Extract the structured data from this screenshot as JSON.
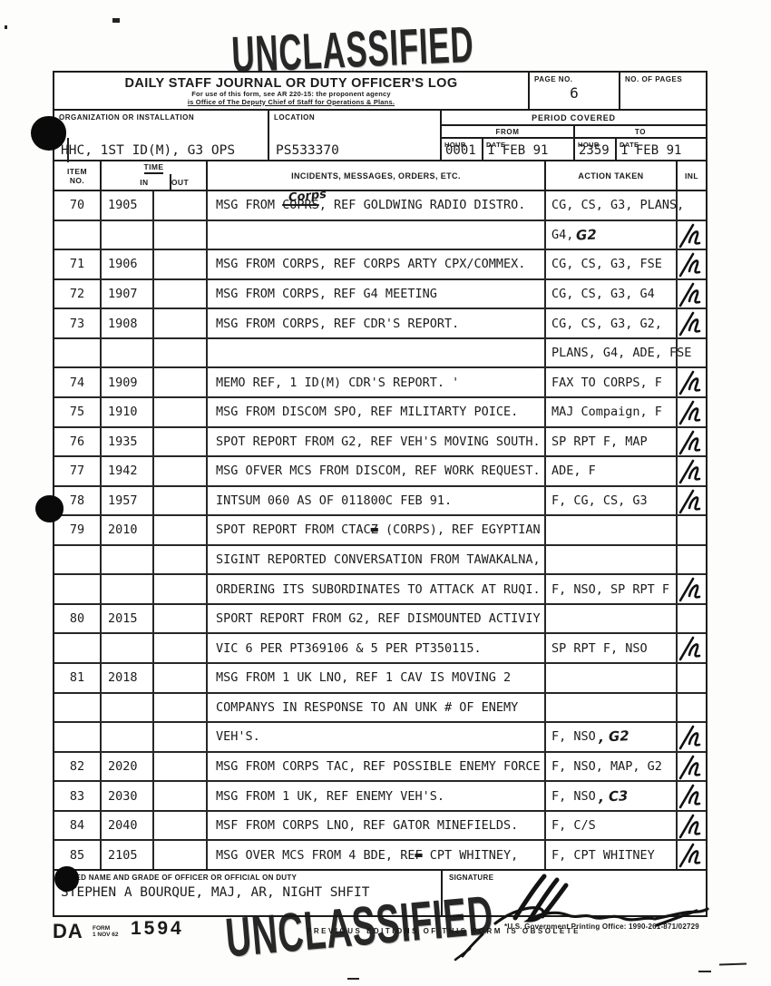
{
  "stamps": {
    "top": "UNCLASSIFIED",
    "bottom": "UNCLASSIFIED"
  },
  "header": {
    "title": "DAILY STAFF JOURNAL OR DUTY OFFICER'S LOG",
    "fineprint_line1": "For use of this form, see AR 220-15: the proponent agency",
    "fineprint_line2": "is Office of The Deputy Chief of Staff for Operations & Plans.",
    "page_no_label": "PAGE NO.",
    "page_no": "6",
    "no_of_pages_label": "NO. OF PAGES",
    "no_of_pages": "",
    "org_label": "ORGANIZATION OR INSTALLATION",
    "org_value": "HHC, 1ST ID(M), G3 OPS",
    "location_label": "LOCATION",
    "location_value": "PS533370",
    "period_label": "PERIOD COVERED",
    "from_label": "FROM",
    "to_label": "TO",
    "hour_label": "HOUR",
    "date_label": "DATE",
    "from_hour": "0001",
    "from_date": "1 FEB 91",
    "to_hour": "2359",
    "to_date": "1 FEB 91"
  },
  "table": {
    "headers": {
      "item_line1": "ITEM",
      "item_line2": "NO.",
      "time": "TIME",
      "in": "IN",
      "out": "OUT",
      "incidents": "INCIDENTS, MESSAGES, ORDERS, ETC.",
      "action": "ACTION TAKEN",
      "inl": "INL"
    },
    "rows": [
      {
        "item": "70",
        "in": "1905",
        "out": "",
        "inc_pre": "MSG FROM ",
        "inc_struck": "COPRS",
        "inc_post": ", REF GOLDWING RADIO DISTRO.",
        "hand_above": "Corps",
        "act": "CG, CS, G3, PLANS,",
        "inl": false
      },
      {
        "item": "",
        "in": "",
        "out": "",
        "inc": "",
        "act": "G4,",
        "act_hand": "G2",
        "inl": true
      },
      {
        "item": "71",
        "in": "1906",
        "out": "",
        "inc": "MSG FROM CORPS, REF CORPS ARTY CPX/COMMEX.",
        "act": "CG, CS, G3, FSE",
        "inl": true
      },
      {
        "item": "72",
        "in": "1907",
        "out": "",
        "inc": "MSG FROM CORPS, REF G4 MEETING",
        "act": "CG, CS, G3, G4",
        "inl": true
      },
      {
        "item": "73",
        "in": "1908",
        "out": "",
        "inc": "MSG FROM CORPS, REF CDR'S REPORT.",
        "act": "CG, CS, G3, G2,",
        "inl": true
      },
      {
        "item": "",
        "in": "",
        "out": "",
        "inc": "",
        "act": "PLANS, G4, ADE, FSE",
        "inl": false
      },
      {
        "item": "74",
        "in": "1909",
        "out": "",
        "inc": "MEMO REF, 1 ID(M) CDR'S REPORT. '",
        "act": "FAX TO CORPS, F",
        "inl": true
      },
      {
        "item": "75",
        "in": "1910",
        "out": "",
        "inc": "MSG FROM DISCOM SPO, REF MILITARTY POICE.",
        "act": "MAJ Compaign, F",
        "inl": true
      },
      {
        "item": "76",
        "in": "1935",
        "out": "",
        "inc": "SPOT REPORT FROM G2, REF VEH'S MOVING SOUTH.",
        "act": "SP RPT F, MAP",
        "inl": true
      },
      {
        "item": "77",
        "in": "1942",
        "out": "",
        "inc": "MSG OFVER MCS FROM DISCOM, REF WORK REQUEST.",
        "act": "ADE, F",
        "inl": true
      },
      {
        "item": "78",
        "in": "1957",
        "out": "",
        "inc": "INTSUM 060 AS OF 011800C FEB 91.",
        "act": "F, CG, CS, G3",
        "inl": true
      },
      {
        "item": "79",
        "in": "2010",
        "out": "",
        "inc_pre": "SPOT REPORT FROM CTAC",
        "inc_struck": "Z",
        "inc_heavy": true,
        "inc_post": " (CORPS), REF EGYPTIAN",
        "act": "",
        "inl": false
      },
      {
        "item": "",
        "in": "",
        "out": "",
        "inc": "SIGINT REPORTED CONVERSATION FROM TAWAKALNA,",
        "act": "",
        "inl": false
      },
      {
        "item": "",
        "in": "",
        "out": "",
        "inc": "ORDERING ITS SUBORDINATES TO ATTACK AT RUQI.",
        "act": "F, NSO, SP RPT F",
        "inl": true
      },
      {
        "item": "80",
        "in": "2015",
        "out": "",
        "inc": "SPORT REPORT FROM G2, REF DISMOUNTED ACTIVIY",
        "act": "",
        "inl": false
      },
      {
        "item": "",
        "in": "",
        "out": "",
        "inc": "VIC 6 PER PT369106 & 5 PER PT350115.",
        "act": "SP RPT F, NSO",
        "inl": true
      },
      {
        "item": "81",
        "in": "2018",
        "out": "",
        "inc": "MSG FROM 1 UK LNO, REF 1 CAV IS MOVING 2",
        "act": "",
        "inl": false
      },
      {
        "item": "",
        "in": "",
        "out": "",
        "inc": "COMPANYS IN RESPONSE TO AN UNK # OF ENEMY",
        "act": "",
        "inl": false
      },
      {
        "item": "",
        "in": "",
        "out": "",
        "inc": "VEH'S.",
        "act": "F, NSO",
        "act_hand": ", G2",
        "inl": true
      },
      {
        "item": "82",
        "in": "2020",
        "out": "",
        "inc": "MSG FROM CORPS TAC, REF POSSIBLE ENEMY FORCE",
        "act": "F, NSO, MAP, G2",
        "inl": true
      },
      {
        "item": "83",
        "in": "2030",
        "out": "",
        "inc": "MSG FROM 1 UK, REF ENEMY VEH'S.",
        "act": "F, NSO",
        "act_hand": ", C3",
        "inl": true
      },
      {
        "item": "84",
        "in": "2040",
        "out": "",
        "inc": "MSF FROM CORPS LNO, REF GATOR MINEFIELDS.",
        "act": "F, C/S",
        "inl": true
      },
      {
        "item": "85",
        "in": "2105",
        "out": "",
        "inc_pre": "MSG OVER MCS FROM 4 BDE, RE",
        "inc_struck": "F",
        "inc_heavy": true,
        "inc_post": " CPT WHITNEY,",
        "act": "F, CPT WHITNEY",
        "inl": true
      }
    ]
  },
  "footer": {
    "typed_name_label": "TYPED NAME AND GRADE OF OFFICER OR OFFICIAL ON DUTY",
    "typed_name": "STEPHEN A BOURQUE, MAJ, AR, NIGHT SHFIT",
    "signature_label": "SIGNATURE"
  },
  "form_footer": {
    "form_prefix": "DA",
    "form_word": "FORM",
    "form_edition": "1 NOV 62",
    "form_number": "1594",
    "obsolete_note": "PREVIOUS EDITIONS OF THIS FORM IS OBSOLETE",
    "gpo_note": "*U.S. Government Printing Office: 1990-261-871/02729"
  }
}
